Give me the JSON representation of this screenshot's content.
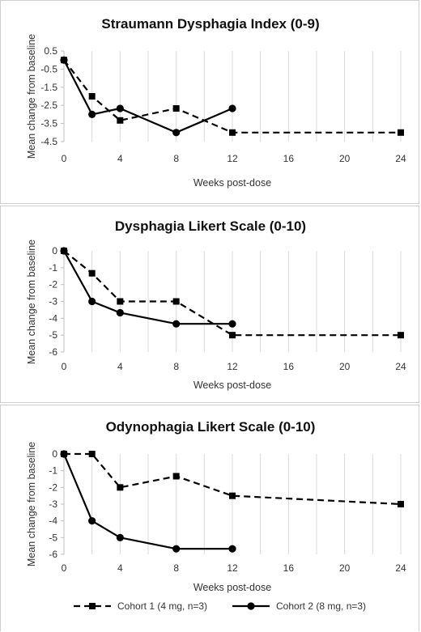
{
  "chart_data": [
    {
      "type": "line",
      "title": "Straumann Dysphagia Index (0-9)",
      "xlabel": "Weeks post-dose",
      "ylabel": "Mean change from baseline",
      "xlim": [
        0,
        24
      ],
      "ylim": [
        -4.5,
        0.5
      ],
      "xticks": [
        0,
        4,
        8,
        12,
        16,
        20,
        24
      ],
      "yticks": [
        0.5,
        -0.5,
        -1.5,
        -2.5,
        -3.5,
        -4.5
      ],
      "ytick_labels": [
        "0.5",
        "-0.5",
        "-1.5",
        "-2.5",
        "-3.5",
        "-4.5"
      ],
      "grid": "vertical",
      "series": [
        {
          "name": "Cohort 1 (4 mg, n=3)",
          "style": "dashed",
          "marker": "square",
          "x": [
            0,
            2,
            4,
            8,
            12,
            24
          ],
          "y": [
            0,
            -2.0,
            -3.33,
            -2.67,
            -4.0,
            -4.0
          ]
        },
        {
          "name": "Cohort 2 (8 mg, n=3)",
          "style": "solid",
          "marker": "circle",
          "x": [
            0,
            2,
            4,
            8,
            12
          ],
          "y": [
            0,
            -3.0,
            -2.67,
            -4.0,
            -2.67
          ]
        }
      ]
    },
    {
      "type": "line",
      "title": "Dysphagia Likert Scale (0-10)",
      "xlabel": "Weeks post-dose",
      "ylabel": "Mean change from baseline",
      "xlim": [
        0,
        24
      ],
      "ylim": [
        -6,
        0
      ],
      "xticks": [
        0,
        4,
        8,
        12,
        16,
        20,
        24
      ],
      "yticks": [
        0,
        -1,
        -2,
        -3,
        -4,
        -5,
        -6
      ],
      "ytick_labels": [
        "0",
        "-1",
        "-2",
        "-3",
        "-4",
        "-5",
        "-6"
      ],
      "grid": "vertical",
      "series": [
        {
          "name": "Cohort 1 (4 mg, n=3)",
          "style": "dashed",
          "marker": "square",
          "x": [
            0,
            2,
            4,
            8,
            12,
            24
          ],
          "y": [
            0,
            -1.33,
            -3.0,
            -3.0,
            -5.0,
            -5.0
          ]
        },
        {
          "name": "Cohort 2 (8 mg, n=3)",
          "style": "solid",
          "marker": "circle",
          "x": [
            0,
            2,
            4,
            8,
            12
          ],
          "y": [
            0,
            -3.0,
            -3.67,
            -4.33,
            -4.33
          ]
        }
      ]
    },
    {
      "type": "line",
      "title": "Odynophagia Likert Scale (0-10)",
      "xlabel": "Weeks post-dose",
      "ylabel": "Mean change from baseline",
      "xlim": [
        0,
        24
      ],
      "ylim": [
        -6,
        0
      ],
      "xticks": [
        0,
        4,
        8,
        12,
        16,
        20,
        24
      ],
      "yticks": [
        0,
        -1,
        -2,
        -3,
        -4,
        -5,
        -6
      ],
      "ytick_labels": [
        "0",
        "-1",
        "-2",
        "-3",
        "-4",
        "-5",
        "-6"
      ],
      "grid": "vertical",
      "series": [
        {
          "name": "Cohort 1 (4 mg, n=3)",
          "style": "dashed",
          "marker": "square",
          "x": [
            0,
            2,
            4,
            8,
            12,
            24
          ],
          "y": [
            0,
            0,
            -2.0,
            -1.33,
            -2.5,
            -3.0
          ]
        },
        {
          "name": "Cohort 2 (8 mg, n=3)",
          "style": "solid",
          "marker": "circle",
          "x": [
            0,
            2,
            4,
            8,
            12
          ],
          "y": [
            0,
            -4.0,
            -5.0,
            -5.67,
            -5.67
          ]
        }
      ]
    }
  ],
  "legend": {
    "position": "bottom",
    "items": [
      {
        "label": "Cohort 1 (4 mg, n=3)",
        "style": "dashed",
        "marker": "square"
      },
      {
        "label": "Cohort 2 (8 mg, n=3)",
        "style": "solid",
        "marker": "circle"
      }
    ]
  },
  "colors": {
    "line": "#000000",
    "grid": "#d9d9d9",
    "axis": "#bfbfbf",
    "panel_border": "#cfcfcf"
  }
}
